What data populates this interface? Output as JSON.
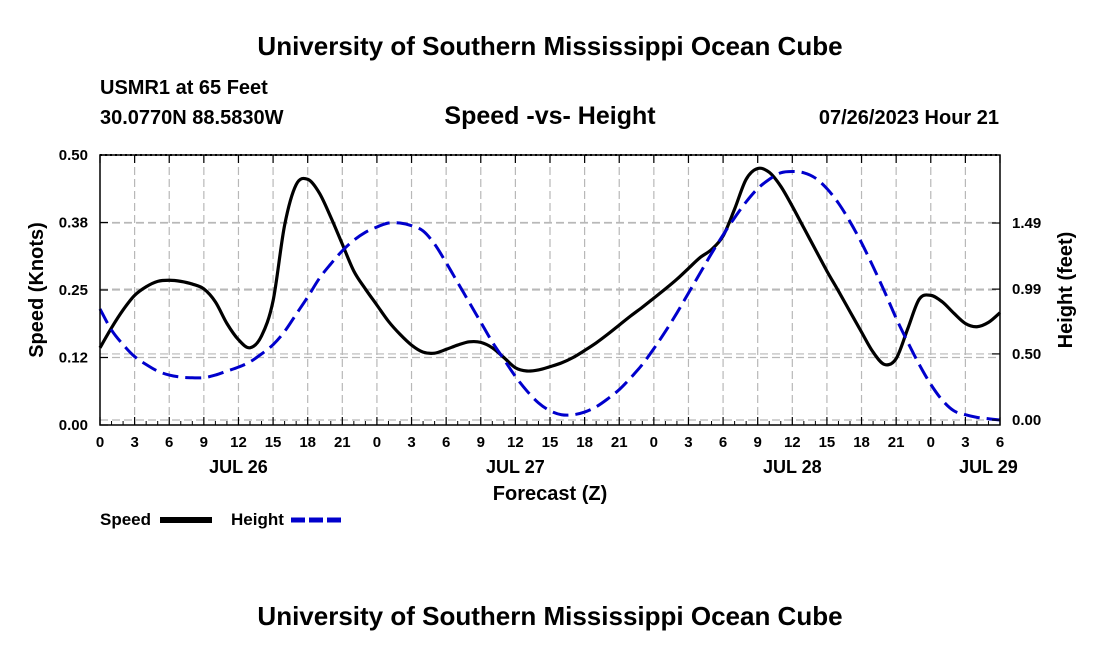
{
  "chart_data": {
    "type": "line",
    "title": "University of Southern Mississippi Ocean Cube",
    "footer_title": "University of Southern Mississippi Ocean Cube",
    "station": "USMR1 at 65 Feet",
    "location": "30.0770N  88.5830W",
    "subtitle": "Speed -vs- Height",
    "timestamp": "07/26/2023 Hour 21",
    "xlabel": "Forecast (Z)",
    "ylabel_left": "Speed (Knots)",
    "ylabel_right": "Height (feet)",
    "x_range": [
      0,
      78
    ],
    "x_ticks": [
      0,
      3,
      6,
      9,
      12,
      15,
      18,
      21,
      24,
      27,
      30,
      33,
      36,
      39,
      42,
      45,
      48,
      51,
      54,
      57,
      60,
      63,
      66,
      69,
      72,
      75,
      78
    ],
    "x_tick_labels": [
      "0",
      "3",
      "6",
      "9",
      "12",
      "15",
      "18",
      "21",
      "0",
      "3",
      "6",
      "9",
      "12",
      "15",
      "18",
      "21",
      "0",
      "3",
      "6",
      "9",
      "12",
      "15",
      "18",
      "21",
      "0",
      "3",
      "6"
    ],
    "date_labels": [
      {
        "text": "JUL 26",
        "x": 12
      },
      {
        "text": "JUL 27",
        "x": 36
      },
      {
        "text": "JUL 28",
        "x": 60
      },
      {
        "text": "JUL 29",
        "x": 77
      }
    ],
    "y_left": {
      "range": [
        0,
        0.5
      ],
      "ticks": [
        0,
        0.125,
        0.25,
        0.375,
        0.5
      ],
      "tick_labels": [
        "0.00",
        "0.12",
        "0.25",
        "0.38",
        "0.50"
      ]
    },
    "y_right": {
      "range": [
        -0.0376,
        2.0044
      ],
      "ticks": [
        0,
        0.5,
        0.99,
        1.49
      ],
      "tick_labels": [
        "0.00",
        "0.50",
        "0.99",
        "1.49"
      ]
    },
    "grid": true,
    "series": [
      {
        "name": "Speed",
        "axis": "left",
        "color": "#000000",
        "dash": "solid",
        "x": [
          0,
          1,
          2,
          3,
          4,
          5,
          6,
          7,
          8,
          9,
          10,
          11,
          12,
          13,
          14,
          15,
          16,
          17,
          18,
          19,
          20,
          21,
          22,
          23,
          24,
          25,
          26,
          27,
          28,
          29,
          30,
          31,
          32,
          33,
          34,
          35,
          36,
          37,
          38,
          39,
          40,
          41,
          42,
          43,
          44,
          45,
          46,
          47,
          48,
          49,
          50,
          51,
          52,
          53,
          54,
          55,
          56,
          57,
          58,
          59,
          60,
          61,
          62,
          63,
          64,
          65,
          66,
          67,
          68,
          69,
          70,
          71,
          72,
          73,
          74,
          75,
          76,
          77,
          78
        ],
        "values": [
          0.143,
          0.18,
          0.213,
          0.24,
          0.256,
          0.266,
          0.268,
          0.266,
          0.261,
          0.252,
          0.228,
          0.188,
          0.158,
          0.143,
          0.165,
          0.23,
          0.37,
          0.445,
          0.455,
          0.43,
          0.385,
          0.335,
          0.285,
          0.252,
          0.222,
          0.192,
          0.168,
          0.148,
          0.135,
          0.133,
          0.14,
          0.148,
          0.154,
          0.153,
          0.143,
          0.125,
          0.106,
          0.1,
          0.102,
          0.108,
          0.115,
          0.125,
          0.138,
          0.152,
          0.168,
          0.185,
          0.202,
          0.218,
          0.235,
          0.252,
          0.27,
          0.29,
          0.31,
          0.325,
          0.35,
          0.4,
          0.455,
          0.475,
          0.468,
          0.442,
          0.405,
          0.365,
          0.325,
          0.285,
          0.248,
          0.21,
          0.172,
          0.135,
          0.112,
          0.123,
          0.178,
          0.233,
          0.24,
          0.228,
          0.207,
          0.188,
          0.182,
          0.19,
          0.208
        ]
      },
      {
        "name": "Height",
        "axis": "right",
        "color": "#0000cc",
        "dash": "dashed",
        "x": [
          0,
          1,
          2,
          3,
          4,
          5,
          6,
          7,
          8,
          9,
          10,
          11,
          12,
          13,
          14,
          15,
          16,
          17,
          18,
          19,
          20,
          21,
          22,
          23,
          24,
          25,
          26,
          27,
          28,
          29,
          30,
          31,
          32,
          33,
          34,
          35,
          36,
          37,
          38,
          39,
          40,
          41,
          42,
          43,
          44,
          45,
          46,
          47,
          48,
          49,
          50,
          51,
          52,
          53,
          54,
          55,
          56,
          57,
          58,
          59,
          60,
          61,
          62,
          63,
          64,
          65,
          66,
          67,
          68,
          69,
          70,
          71,
          72,
          73,
          74,
          75,
          76,
          77,
          78
        ],
        "values": [
          0.84,
          0.68,
          0.57,
          0.48,
          0.42,
          0.37,
          0.34,
          0.325,
          0.32,
          0.32,
          0.34,
          0.37,
          0.4,
          0.44,
          0.5,
          0.57,
          0.67,
          0.8,
          0.93,
          1.07,
          1.18,
          1.28,
          1.36,
          1.42,
          1.46,
          1.49,
          1.49,
          1.47,
          1.43,
          1.33,
          1.19,
          1.04,
          0.89,
          0.74,
          0.59,
          0.46,
          0.33,
          0.22,
          0.13,
          0.07,
          0.04,
          0.04,
          0.06,
          0.1,
          0.16,
          0.23,
          0.32,
          0.42,
          0.54,
          0.67,
          0.81,
          0.96,
          1.11,
          1.26,
          1.4,
          1.53,
          1.65,
          1.75,
          1.82,
          1.87,
          1.88,
          1.87,
          1.83,
          1.75,
          1.64,
          1.5,
          1.34,
          1.16,
          0.97,
          0.77,
          0.59,
          0.42,
          0.27,
          0.15,
          0.07,
          0.04,
          0.02,
          0.01,
          0.0
        ]
      }
    ],
    "legend": [
      {
        "label": "Speed",
        "color": "#000000",
        "dash": "solid"
      },
      {
        "label": "Height",
        "color": "#0000cc",
        "dash": "dashed"
      }
    ]
  }
}
